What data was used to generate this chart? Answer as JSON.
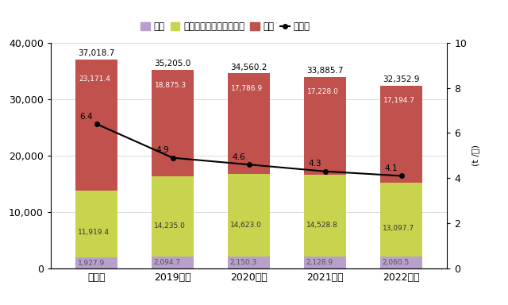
{
  "categories": [
    "基準年",
    "2019年度",
    "2020年度",
    "2021年度",
    "2022年度"
  ],
  "seizo": [
    1927.9,
    2094.7,
    2150.3,
    2128.9,
    2060.5
  ],
  "office": [
    11919.4,
    14235.0,
    14623.0,
    14528.8,
    13097.7
  ],
  "haitatsu": [
    23171.4,
    18875.3,
    17786.9,
    17228.0,
    17194.7
  ],
  "gentan": [
    6.4,
    4.9,
    4.6,
    4.3,
    4.1
  ],
  "totals": [
    37018.7,
    35205.0,
    34560.2,
    33885.7,
    32352.9
  ],
  "seizo_color": "#b8a0cc",
  "office_color": "#c8d44e",
  "haitatsu_color": "#c0514d",
  "gentan_color": "#000000",
  "ylim_left": [
    0,
    40000
  ],
  "ylim_right": [
    0,
    10
  ],
  "yticks_left": [
    0,
    10000,
    20000,
    30000,
    40000
  ],
  "yticks_right": [
    0,
    2,
    4,
    6,
    8,
    10
  ],
  "right_ylabel": "(t /億)",
  "legend_labels": [
    "製造",
    "オフィス・流通センター",
    "配送",
    "原単位"
  ],
  "bar_width": 0.55,
  "bg_color": "#ffffff"
}
